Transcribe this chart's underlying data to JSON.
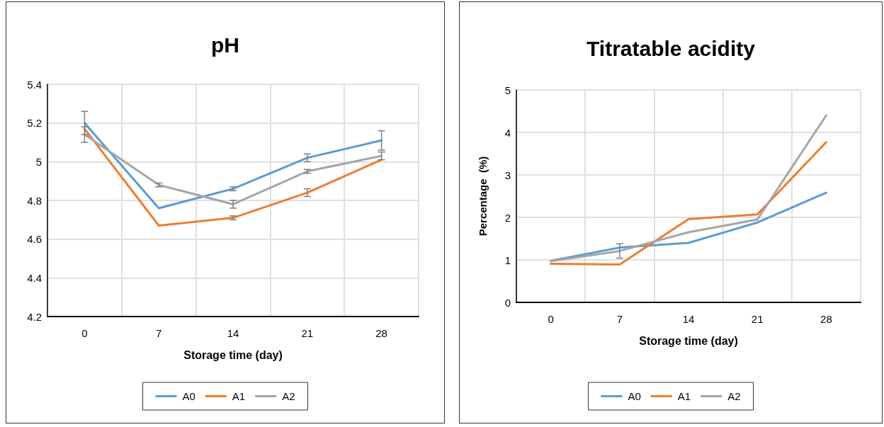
{
  "chart_data": [
    {
      "type": "line",
      "title": "pH",
      "xlabel": "Storage time (day)",
      "categories": [
        "0",
        "7",
        "14",
        "21",
        "28"
      ],
      "series": [
        {
          "name": "A0",
          "color": "#5b9bd5",
          "values": [
            5.2,
            4.76,
            4.86,
            5.02,
            5.11
          ],
          "errors": [
            0.06,
            null,
            0.01,
            0.02,
            0.05
          ]
        },
        {
          "name": "A1",
          "color": "#ed7d31",
          "values": [
            5.17,
            4.67,
            4.71,
            4.84,
            5.01
          ],
          "errors": [
            null,
            null,
            0.01,
            0.02,
            null
          ]
        },
        {
          "name": "A2",
          "color": "#a5a5a5",
          "values": [
            5.14,
            4.88,
            4.78,
            4.95,
            5.03
          ],
          "errors": [
            0.04,
            0.01,
            0.02,
            0.01,
            0.02
          ]
        }
      ],
      "ylim": [
        4.2,
        5.4
      ],
      "yticks": [
        4.2,
        4.4,
        4.6,
        4.8,
        5,
        5.2,
        5.4
      ],
      "grid": true,
      "legend": "bottom",
      "marker": "none",
      "line_style": "solid"
    },
    {
      "type": "line",
      "title": "Titratable acidity",
      "xlabel": "Storage time (day)",
      "ylabel": "Percentage  (%)",
      "categories": [
        "0",
        "7",
        "14",
        "21",
        "28"
      ],
      "series": [
        {
          "name": "A0",
          "color": "#5b9bd5",
          "values": [
            0.98,
            1.29,
            1.4,
            1.88,
            2.58
          ]
        },
        {
          "name": "A1",
          "color": "#ed7d31",
          "values": [
            0.91,
            0.89,
            1.96,
            2.07,
            3.77
          ]
        },
        {
          "name": "A2",
          "color": "#a5a5a5",
          "values": [
            0.97,
            1.21,
            1.65,
            1.95,
            4.4
          ],
          "errors": [
            null,
            0.17,
            null,
            null,
            null
          ]
        }
      ],
      "ylim": [
        0,
        5
      ],
      "yticks": [
        0,
        1,
        2,
        3,
        4,
        5
      ],
      "grid": true,
      "legend": "bottom",
      "marker": "none",
      "line_style": "solid"
    }
  ]
}
